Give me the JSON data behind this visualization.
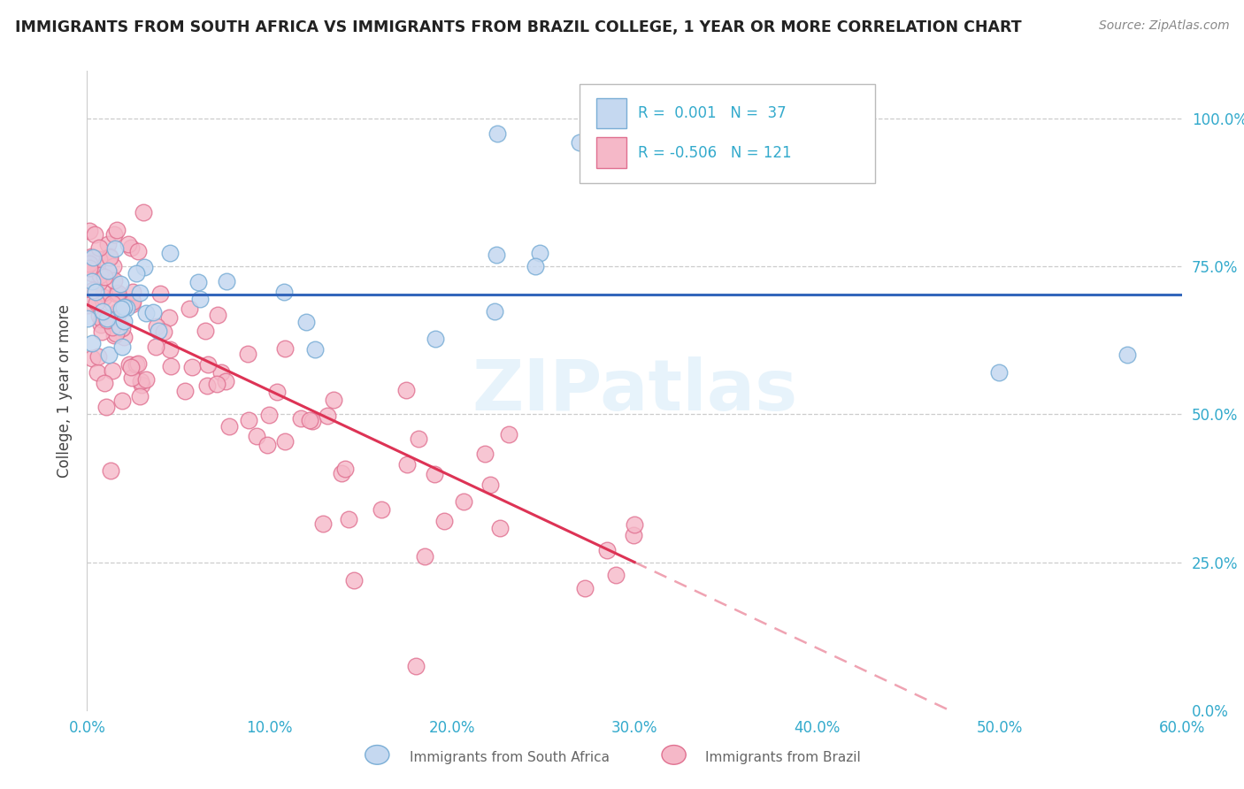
{
  "title": "IMMIGRANTS FROM SOUTH AFRICA VS IMMIGRANTS FROM BRAZIL COLLEGE, 1 YEAR OR MORE CORRELATION CHART",
  "source_text": "Source: ZipAtlas.com",
  "ylabel": "College, 1 year or more",
  "xlim": [
    0.0,
    0.6
  ],
  "ylim": [
    0.0,
    1.08
  ],
  "xticks": [
    0.0,
    0.1,
    0.2,
    0.3,
    0.4,
    0.5,
    0.6
  ],
  "xticklabels": [
    "0.0%",
    "10.0%",
    "20.0%",
    "30.0%",
    "40.0%",
    "50.0%",
    "60.0%"
  ],
  "yticks": [
    0.0,
    0.25,
    0.5,
    0.75,
    1.0
  ],
  "yticklabels": [
    "0.0%",
    "25.0%",
    "50.0%",
    "75.0%",
    "100.0%"
  ],
  "grid_color": "#cccccc",
  "background_color": "#ffffff",
  "watermark": "ZIPatlas",
  "legend_r1_label": "R =  0.001",
  "legend_n1_label": "N = 37",
  "legend_r2_label": "R = -0.506",
  "legend_n2_label": "N = 121",
  "blue_face": "#c5d8f0",
  "blue_edge": "#7aaed6",
  "pink_face": "#f5b8c8",
  "pink_edge": "#e07090",
  "blue_line_color": "#3366bb",
  "pink_line_color": "#dd3355",
  "tick_color": "#33aacc",
  "title_color": "#222222",
  "source_color": "#888888",
  "ylabel_color": "#444444",
  "legend_text_color": "#33aacc",
  "bottom_label_color": "#666666"
}
